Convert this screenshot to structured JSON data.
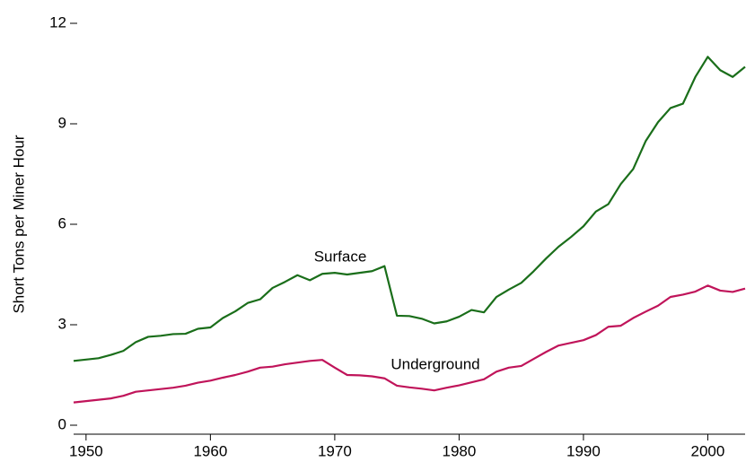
{
  "chart_data": {
    "type": "line",
    "y_label": "Short Tons per Miner Hour",
    "x": [
      1949,
      1950,
      1951,
      1952,
      1953,
      1954,
      1955,
      1956,
      1957,
      1958,
      1959,
      1960,
      1961,
      1962,
      1963,
      1964,
      1965,
      1966,
      1967,
      1968,
      1969,
      1970,
      1971,
      1972,
      1973,
      1974,
      1975,
      1976,
      1977,
      1978,
      1979,
      1980,
      1981,
      1982,
      1983,
      1984,
      1985,
      1986,
      1987,
      1988,
      1989,
      1990,
      1991,
      1992,
      1993,
      1994,
      1995,
      1996,
      1997,
      1998,
      1999,
      2000,
      2001,
      2002,
      2003
    ],
    "series": [
      {
        "name": "Surface",
        "color": "#1a6e1a",
        "values": [
          1.92,
          1.96,
          2.0,
          2.1,
          2.22,
          2.48,
          2.64,
          2.67,
          2.72,
          2.73,
          2.88,
          2.92,
          3.2,
          3.4,
          3.65,
          3.76,
          4.1,
          4.28,
          4.48,
          4.33,
          4.52,
          4.55,
          4.5,
          4.55,
          4.6,
          4.75,
          3.27,
          3.26,
          3.18,
          3.04,
          3.1,
          3.24,
          3.44,
          3.37,
          3.83,
          4.05,
          4.25,
          4.6,
          4.98,
          5.33,
          5.62,
          5.94,
          6.38,
          6.6,
          7.2,
          7.65,
          8.48,
          9.05,
          9.47,
          9.6,
          10.4,
          11.0,
          10.6,
          10.4,
          10.7
        ]
      },
      {
        "name": "Underground",
        "color": "#c0145a",
        "values": [
          0.68,
          0.72,
          0.76,
          0.8,
          0.88,
          1.0,
          1.04,
          1.08,
          1.12,
          1.18,
          1.27,
          1.33,
          1.42,
          1.5,
          1.6,
          1.72,
          1.75,
          1.82,
          1.87,
          1.92,
          1.95,
          1.72,
          1.5,
          1.49,
          1.46,
          1.4,
          1.18,
          1.13,
          1.09,
          1.04,
          1.12,
          1.19,
          1.28,
          1.37,
          1.6,
          1.72,
          1.77,
          1.98,
          2.19,
          2.38,
          2.46,
          2.54,
          2.69,
          2.94,
          2.97,
          3.2,
          3.39,
          3.57,
          3.83,
          3.9,
          3.99,
          4.17,
          4.02,
          3.98,
          4.08
        ]
      }
    ],
    "xlim": [
      1949,
      2003
    ],
    "xticks": [
      1950,
      1960,
      1970,
      1980,
      1990,
      2000
    ],
    "ylim": [
      0,
      12
    ],
    "yticks": [
      0,
      3,
      6,
      9,
      12
    ]
  }
}
